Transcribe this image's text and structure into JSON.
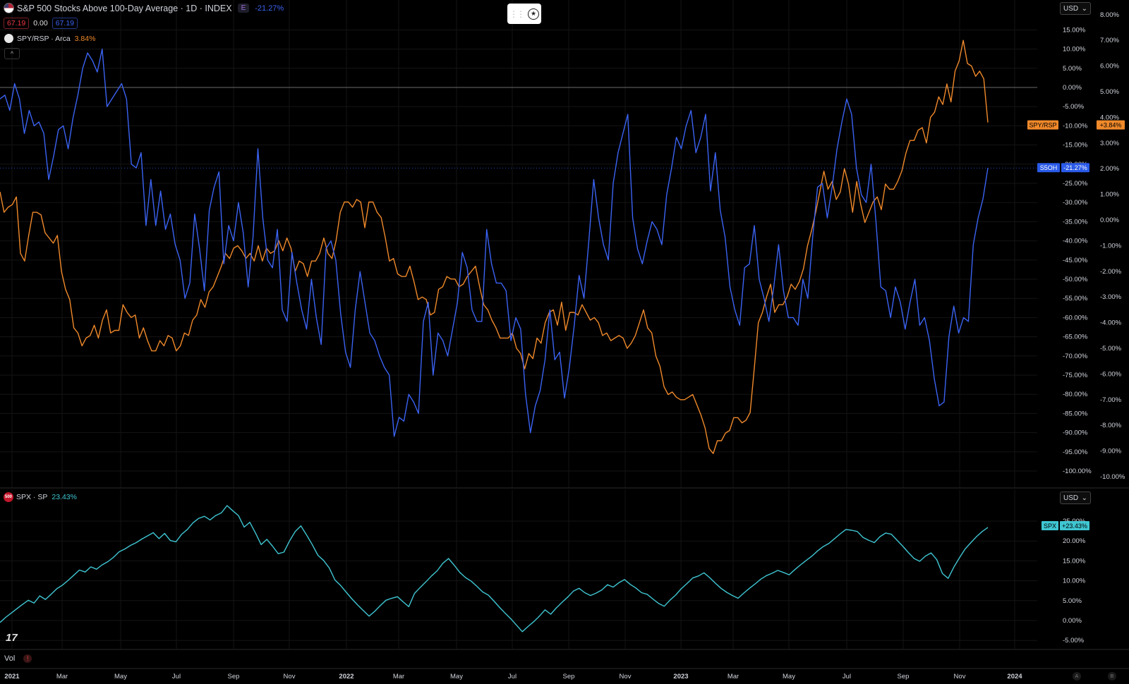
{
  "header": {
    "title": "S&P 500 Stocks Above 100-Day Average · 1D · INDEX",
    "pill_e": "E",
    "change": "-21.27%",
    "val_open": "67.19",
    "val_mid": "0.00",
    "val_close": "67.19",
    "spy_label": "SPY/RSP · Arca",
    "spy_change": "3.84%",
    "collapse": "^",
    "currency": "USD",
    "spx_label": "SPX · SP",
    "spx_change": "23.43%",
    "spx_currency": "USD",
    "spx_logo": "500",
    "vol_label": "Vol",
    "vol_warn": "!",
    "corner_a": "A",
    "corner_b": "B"
  },
  "chart_data": {
    "type": "line",
    "x_ticks": [
      "2021",
      "Mar",
      "May",
      "Jul",
      "Sep",
      "Nov",
      "2022",
      "Mar",
      "May",
      "Jul",
      "Sep",
      "Nov",
      "2023",
      "Mar",
      "May",
      "Jul",
      "Sep",
      "Nov",
      "2024"
    ],
    "top_pane": {
      "left_axis_labels": [
        "15.00%",
        "10.00%",
        "5.00%",
        "0.00%",
        "-5.00%",
        "-10.00%",
        "-15.00%",
        "-20.00%",
        "-25.00%",
        "-30.00%",
        "-35.00%",
        "-40.00%",
        "-45.00%",
        "-50.00%",
        "-55.00%",
        "-60.00%",
        "-65.00%",
        "-70.00%",
        "-75.00%",
        "-80.00%",
        "-85.00%",
        "-90.00%",
        "-95.00%",
        "-100.00%"
      ],
      "right_axis_labels": [
        "8.00%",
        "7.00%",
        "6.00%",
        "5.00%",
        "4.00%",
        "3.00%",
        "2.00%",
        "1.00%",
        "0.00%",
        "-1.00%",
        "-2.00%",
        "-3.00%",
        "-4.00%",
        "-5.00%",
        "-6.00%",
        "-7.00%",
        "-8.00%",
        "-9.00%",
        "-10.00%"
      ],
      "series": [
        {
          "name": "S5OH",
          "color": "#3b63f3",
          "last_label": "S5OH",
          "last_value": "-21.27%",
          "unit": "% change (left axis)",
          "values": [
            -3,
            -2,
            -6,
            1,
            -3,
            -12,
            -6,
            -10,
            -9,
            -12,
            -24,
            -18,
            -11,
            -10,
            -16,
            -8,
            -2,
            5,
            9,
            7,
            4,
            10,
            -5,
            -3,
            -1,
            1,
            -3,
            -20,
            -21,
            -17,
            -36,
            -24,
            -36,
            -27,
            -37,
            -33,
            -41,
            -45,
            -55,
            -51,
            -33,
            -42,
            -53,
            -32,
            -26,
            -22,
            -46,
            -36,
            -40,
            -30,
            -38,
            -52,
            -39,
            -16,
            -34,
            -45,
            -47,
            -37,
            -58,
            -61,
            -43,
            -51,
            -58,
            -63,
            -50,
            -60,
            -67,
            -42,
            -40,
            -45,
            -59,
            -69,
            -73,
            -58,
            -48,
            -56,
            -64,
            -66,
            -70,
            -73,
            -75,
            -91,
            -86,
            -87,
            -80,
            -82,
            -85,
            -61,
            -56,
            -75,
            -64,
            -66,
            -70,
            -63,
            -56,
            -43,
            -47,
            -58,
            -61,
            -61,
            -37,
            -46,
            -51,
            -51,
            -53,
            -66,
            -60,
            -63,
            -80,
            -90,
            -83,
            -79,
            -71,
            -58,
            -71,
            -69,
            -81,
            -73,
            -62,
            -49,
            -55,
            -40,
            -24,
            -34,
            -41,
            -45,
            -25,
            -17,
            -12,
            -7,
            -34,
            -42,
            -46,
            -40,
            -35,
            -37,
            -41,
            -28,
            -21,
            -13,
            -16,
            -10,
            -6,
            -17,
            -13,
            -7,
            -27,
            -17,
            -32,
            -39,
            -52,
            -58,
            -62,
            -47,
            -46,
            -36,
            -50,
            -55,
            -61,
            -52,
            -41,
            -53,
            -60,
            -60,
            -62,
            -50,
            -55,
            -39,
            -26,
            -25,
            -34,
            -26,
            -16,
            -9,
            -3,
            -7,
            -21,
            -28,
            -30,
            -20,
            -35,
            -52,
            -53,
            -60,
            -52,
            -56,
            -63,
            -56,
            -50,
            -62,
            -60,
            -66,
            -76,
            -83,
            -82,
            -65,
            -57,
            -64,
            -60,
            -61,
            -41,
            -34,
            -29,
            -21
          ]
        },
        {
          "name": "SPY/RSP",
          "color": "#f0892a",
          "last_label": "SPY/RSP",
          "last_value": "+3.84%",
          "unit": "% change (right axis)",
          "values": [
            1.1,
            0.3,
            0.5,
            0.6,
            0.9,
            -1.3,
            -1.6,
            -0.6,
            0.3,
            0.3,
            0.2,
            -0.5,
            -0.7,
            -0.9,
            -0.6,
            -2.0,
            -2.7,
            -3.1,
            -4.2,
            -4.4,
            -4.9,
            -4.6,
            -4.5,
            -4.1,
            -4.6,
            -3.9,
            -3.5,
            -4.4,
            -4.3,
            -4.3,
            -3.3,
            -3.6,
            -3.8,
            -3.7,
            -4.6,
            -4.2,
            -4.7,
            -5.1,
            -5.1,
            -4.7,
            -4.9,
            -4.5,
            -4.6,
            -5.1,
            -4.9,
            -4.4,
            -4.5,
            -3.9,
            -3.7,
            -3.1,
            -3.4,
            -2.8,
            -2.6,
            -2.2,
            -1.8,
            -1.3,
            -1.5,
            -1.1,
            -1.0,
            -1.2,
            -1.5,
            -1.3,
            -1.6,
            -1.0,
            -1.6,
            -1.1,
            -1.3,
            -1.2,
            -0.8,
            -1.2,
            -0.7,
            -1.1,
            -2.0,
            -1.6,
            -1.7,
            -2.2,
            -1.6,
            -1.6,
            -1.3,
            -0.7,
            -1.3,
            -1.5,
            -0.8,
            0.3,
            0.7,
            0.7,
            0.5,
            0.8,
            0.7,
            -0.3,
            0.7,
            0.7,
            0.3,
            0.1,
            -0.7,
            -1.6,
            -1.5,
            -2.1,
            -2.2,
            -2.2,
            -1.8,
            -2.4,
            -3.1,
            -3.0,
            -3.1,
            -3.7,
            -3.6,
            -2.7,
            -2.6,
            -2.2,
            -2.3,
            -2.3,
            -2.6,
            -2.5,
            -2.2,
            -2.0,
            -1.8,
            -2.6,
            -3.3,
            -3.5,
            -3.9,
            -4.2,
            -4.6,
            -4.6,
            -4.6,
            -4.4,
            -5.0,
            -5.2,
            -5.8,
            -5.2,
            -5.4,
            -4.6,
            -4.8,
            -4.0,
            -3.6,
            -3.5,
            -4.1,
            -3.2,
            -4.3,
            -3.6,
            -3.6,
            -3.7,
            -3.3,
            -3.6,
            -3.9,
            -3.8,
            -4.0,
            -4.5,
            -4.4,
            -4.7,
            -4.6,
            -4.5,
            -4.6,
            -5.0,
            -4.8,
            -4.5,
            -4.0,
            -3.5,
            -4.2,
            -4.4,
            -5.3,
            -5.7,
            -6.5,
            -6.8,
            -6.7,
            -6.9,
            -7.0,
            -7.0,
            -6.9,
            -6.8,
            -7.2,
            -7.6,
            -8.1,
            -8.9,
            -9.1,
            -8.6,
            -8.6,
            -8.3,
            -8.2,
            -7.7,
            -7.7,
            -7.9,
            -7.8,
            -7.5,
            -5.8,
            -4.0,
            -3.6,
            -3.0,
            -2.5,
            -3.6,
            -3.3,
            -3.3,
            -3.0,
            -2.5,
            -2.7,
            -2.4,
            -1.9,
            -1.0,
            -0.4,
            0.3,
            1.1,
            1.9,
            1.2,
            1.5,
            0.8,
            1.1,
            2.0,
            1.4,
            0.3,
            1.5,
            0.6,
            -0.1,
            0.3,
            0.7,
            0.9,
            0.4,
            1.4,
            1.2,
            1.2,
            1.5,
            1.9,
            2.6,
            3.1,
            3.1,
            3.5,
            3.6,
            3.0,
            4.0,
            4.2,
            4.8,
            4.5,
            5.3,
            4.6,
            5.8,
            6.2,
            7.0,
            6.1,
            6.0,
            5.6,
            5.8,
            5.5,
            3.8
          ]
        }
      ]
    },
    "bottom_pane": {
      "axis_labels": [
        "25.00%",
        "20.00%",
        "15.00%",
        "10.00%",
        "5.00%",
        "0.00%",
        "-5.00%"
      ],
      "series": [
        {
          "name": "SPX",
          "color": "#3fc6d2",
          "last_label": "SPX",
          "last_value": "+23.43%",
          "unit": "% change",
          "values": [
            -0.5,
            0.8,
            1.9,
            3.0,
            4.1,
            5.1,
            4.4,
            6.2,
            5.3,
            6.6,
            8.0,
            8.9,
            10.1,
            11.4,
            12.7,
            12.2,
            13.5,
            12.9,
            14.0,
            14.8,
            15.9,
            17.3,
            18.0,
            18.9,
            19.6,
            20.5,
            21.3,
            22.1,
            20.6,
            21.9,
            20.1,
            19.8,
            21.7,
            22.9,
            24.6,
            25.7,
            26.2,
            25.3,
            26.4,
            27.1,
            28.9,
            27.6,
            26.4,
            23.5,
            24.7,
            22.0,
            19.1,
            20.4,
            18.7,
            16.8,
            17.2,
            20.0,
            22.4,
            23.8,
            21.5,
            19.1,
            16.4,
            15.1,
            13.2,
            10.2,
            8.8,
            7.1,
            5.4,
            3.9,
            2.5,
            1.1,
            2.3,
            3.8,
            5.1,
            5.6,
            6.0,
            4.7,
            3.5,
            6.8,
            8.3,
            9.7,
            11.2,
            12.5,
            14.4,
            15.6,
            13.9,
            12.1,
            10.8,
            9.9,
            8.6,
            7.2,
            6.4,
            4.9,
            3.3,
            1.8,
            0.4,
            -1.2,
            -2.8,
            -1.5,
            -0.3,
            1.1,
            2.7,
            1.6,
            3.2,
            4.6,
            5.9,
            7.4,
            8.1,
            7.0,
            6.3,
            6.9,
            7.7,
            9.0,
            8.4,
            9.5,
            10.3,
            9.1,
            8.2,
            7.0,
            6.6,
            5.4,
            4.3,
            3.6,
            5.1,
            6.4,
            8.0,
            9.3,
            10.7,
            11.2,
            12.0,
            10.8,
            9.4,
            8.1,
            7.1,
            6.3,
            5.6,
            6.9,
            8.1,
            9.2,
            10.4,
            11.3,
            11.9,
            12.6,
            12.1,
            11.5,
            12.8,
            14.0,
            15.1,
            16.2,
            17.5,
            18.6,
            19.4,
            20.6,
            21.8,
            22.9,
            22.7,
            22.4,
            20.9,
            20.2,
            19.6,
            21.1,
            22.0,
            21.7,
            20.2,
            18.7,
            17.1,
            15.6,
            14.9,
            16.2,
            17.0,
            15.3,
            11.8,
            10.6,
            13.4,
            15.8,
            18.0,
            19.6,
            21.1,
            22.4,
            23.4
          ]
        }
      ]
    }
  }
}
